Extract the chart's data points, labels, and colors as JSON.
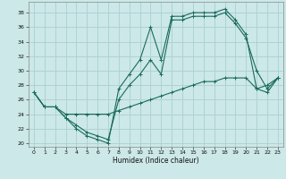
{
  "xlabel": "Humidex (Indice chaleur)",
  "xlim": [
    -0.5,
    23.5
  ],
  "ylim": [
    19.5,
    39.5
  ],
  "xticks": [
    0,
    1,
    2,
    3,
    4,
    5,
    6,
    7,
    8,
    9,
    10,
    11,
    12,
    13,
    14,
    15,
    16,
    17,
    18,
    19,
    20,
    21,
    22,
    23
  ],
  "yticks": [
    20,
    22,
    24,
    26,
    28,
    30,
    32,
    34,
    36,
    38
  ],
  "bg_color": "#cce8e8",
  "grid_color": "#aad0d0",
  "line_color": "#1a6b5a",
  "line1_x": [
    0,
    1,
    2,
    3,
    4,
    5,
    6,
    7,
    8,
    9,
    10,
    11,
    12,
    13,
    14,
    15,
    16,
    17,
    18,
    19,
    20,
    21,
    22,
    23
  ],
  "line1_y": [
    27,
    25,
    25,
    23.5,
    22,
    21,
    20.5,
    20,
    27.5,
    29.5,
    31.5,
    36,
    31.5,
    37.5,
    37.5,
    38,
    38,
    38,
    38.5,
    37,
    35,
    27.5,
    27,
    29
  ],
  "line2_x": [
    0,
    1,
    2,
    3,
    4,
    5,
    6,
    7,
    8,
    9,
    10,
    11,
    12,
    13,
    14,
    15,
    16,
    17,
    18,
    19,
    20,
    21,
    22,
    23
  ],
  "line2_y": [
    27,
    25,
    25,
    23.5,
    22.5,
    21.5,
    21,
    20.5,
    26,
    28,
    29.5,
    31.5,
    29.5,
    37,
    37,
    37.5,
    37.5,
    37.5,
    38,
    36.5,
    34.5,
    30,
    27.5,
    29
  ],
  "line3_x": [
    0,
    1,
    2,
    3,
    4,
    5,
    6,
    7,
    8,
    9,
    10,
    11,
    12,
    13,
    14,
    15,
    16,
    17,
    18,
    19,
    20,
    21,
    22,
    23
  ],
  "line3_y": [
    27,
    25,
    25,
    24,
    24,
    24,
    24,
    24,
    24.5,
    25,
    25.5,
    26,
    26.5,
    27,
    27.5,
    28,
    28.5,
    28.5,
    29,
    29,
    29,
    27.5,
    28,
    29
  ]
}
